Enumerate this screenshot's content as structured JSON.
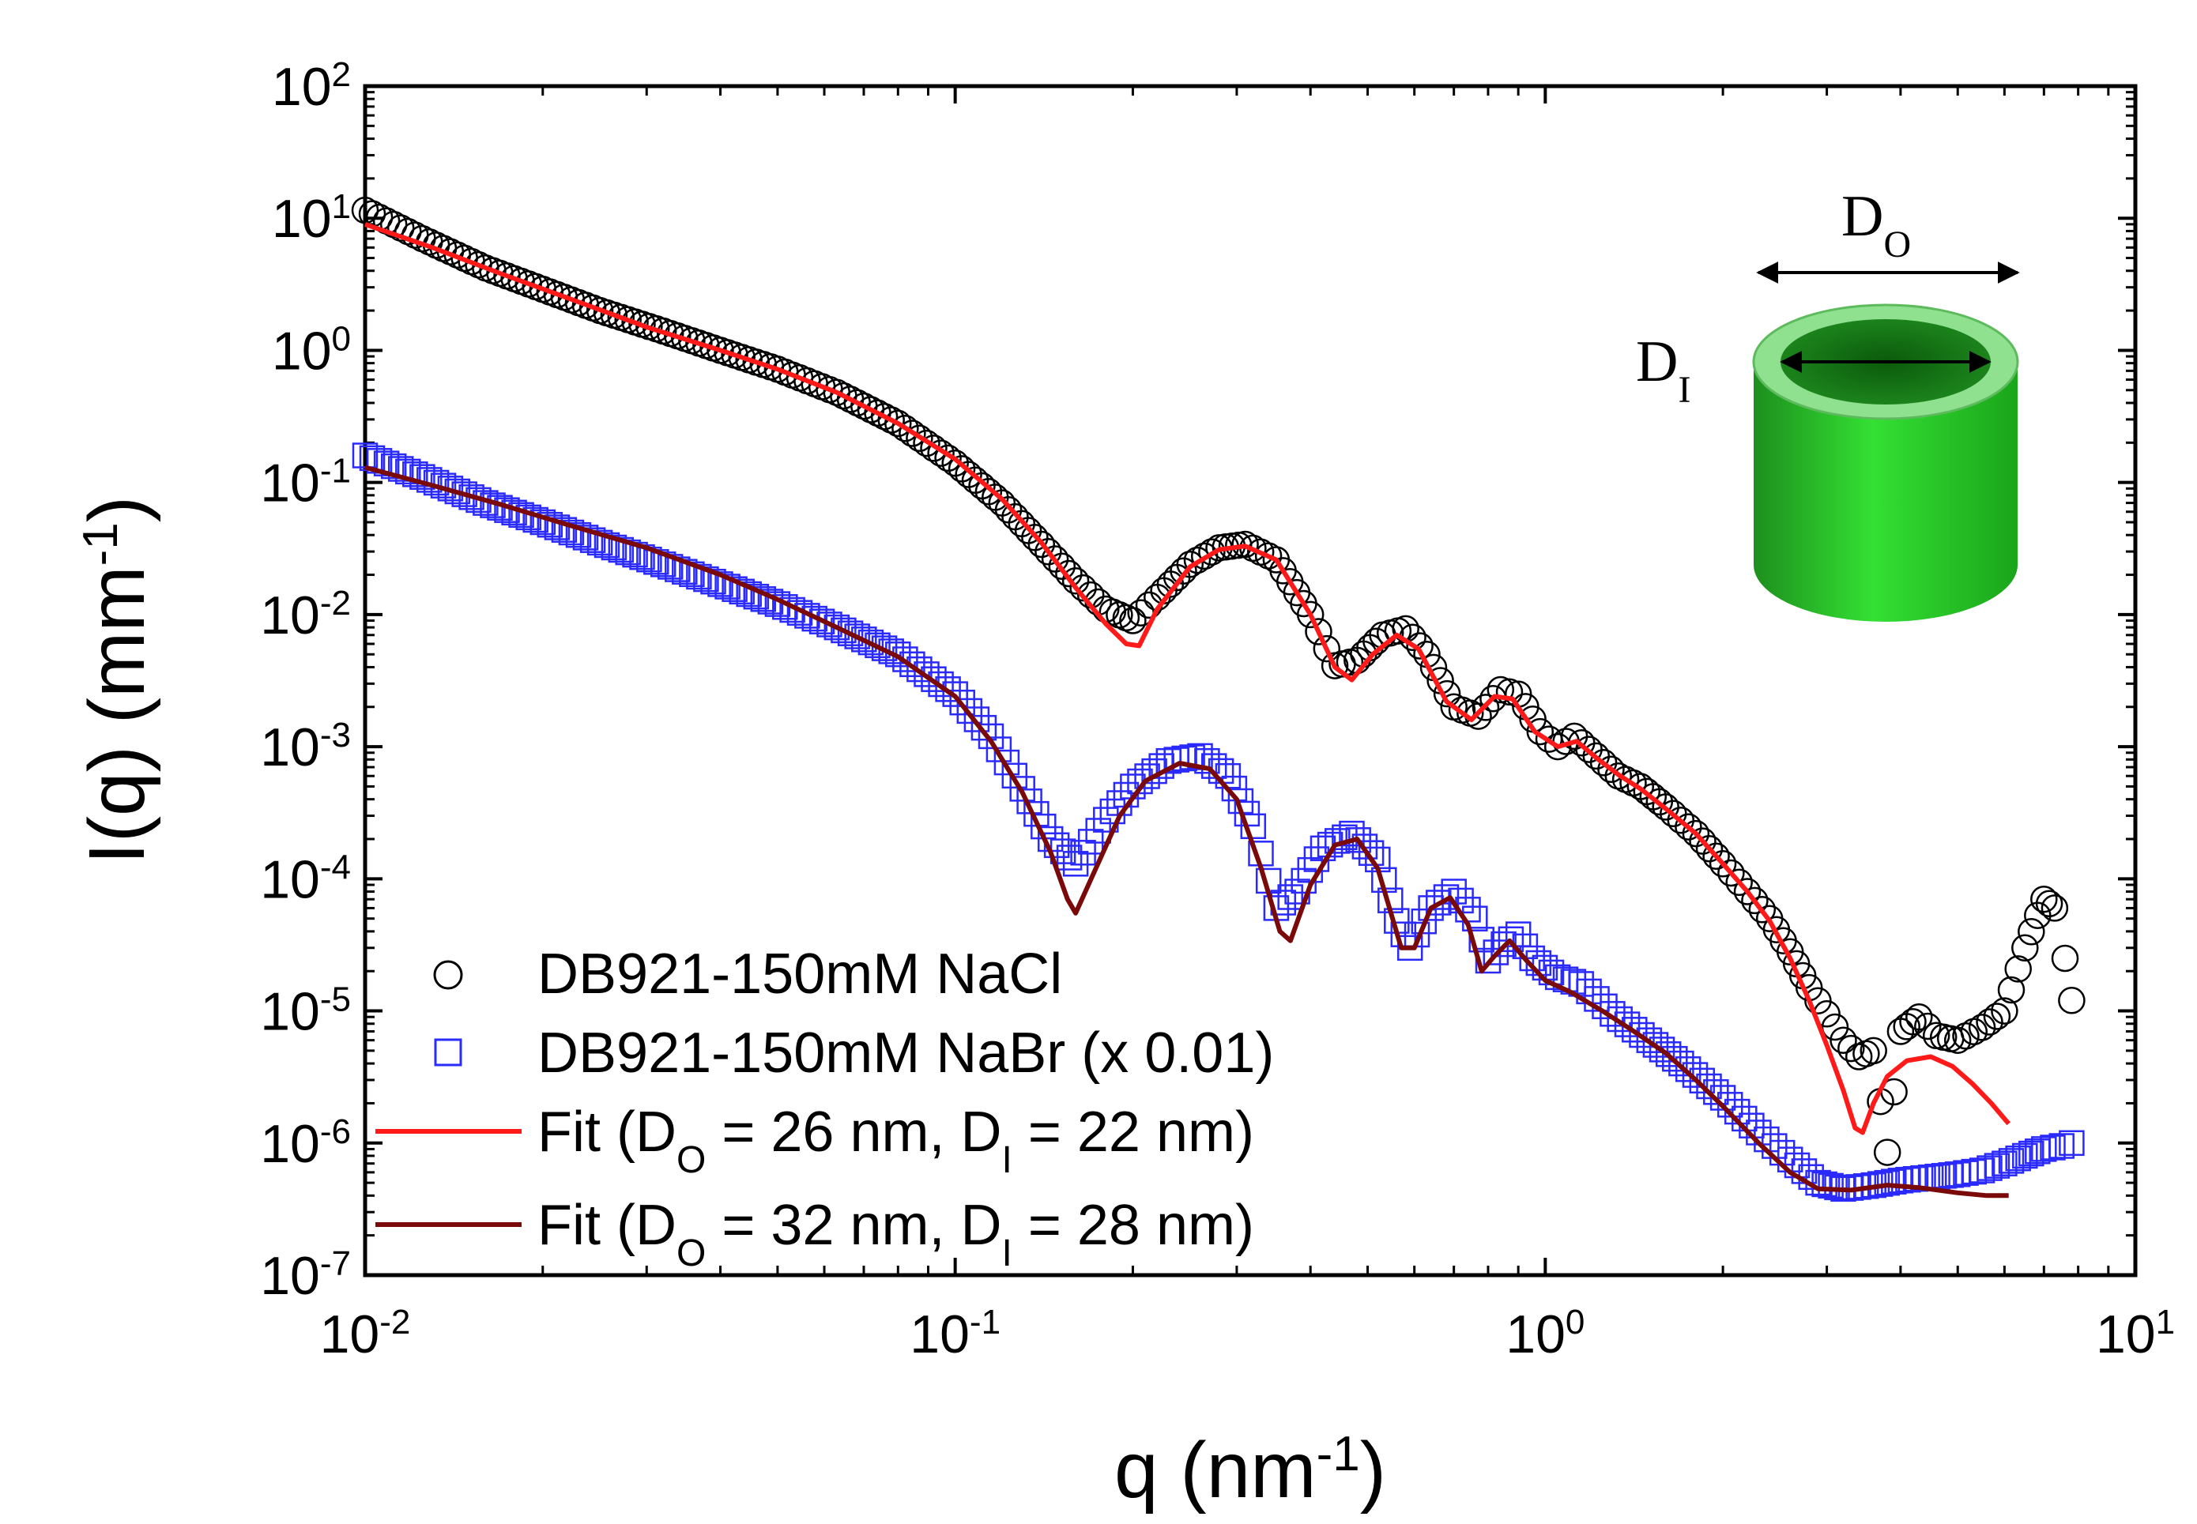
{
  "chart_data": {
    "type": "scatter",
    "title": "",
    "xlabel": "q (nm",
    "xlabel_sup": "-1",
    "xlabel_end": ")",
    "ylabel": "I(q) (mm",
    "ylabel_sup": "-1",
    "ylabel_end": ")",
    "xscale": "log",
    "yscale": "log",
    "xlim": [
      0.01,
      10
    ],
    "ylim": [
      1e-07,
      100
    ],
    "x_ticks": [
      {
        "base": "10",
        "exp": "-2",
        "value": 0.01
      },
      {
        "base": "10",
        "exp": "-1",
        "value": 0.1
      },
      {
        "base": "10",
        "exp": "0",
        "value": 1
      },
      {
        "base": "10",
        "exp": "1",
        "value": 10
      }
    ],
    "y_ticks": [
      {
        "base": "10",
        "exp": "2",
        "value": 100
      },
      {
        "base": "10",
        "exp": "1",
        "value": 10
      },
      {
        "base": "10",
        "exp": "0",
        "value": 1
      },
      {
        "base": "10",
        "exp": "-1",
        "value": 0.1
      },
      {
        "base": "10",
        "exp": "-2",
        "value": 0.01
      },
      {
        "base": "10",
        "exp": "-3",
        "value": 0.001
      },
      {
        "base": "10",
        "exp": "-4",
        "value": 0.0001
      },
      {
        "base": "10",
        "exp": "-5",
        "value": 1e-05
      },
      {
        "base": "10",
        "exp": "-6",
        "value": 1e-06
      },
      {
        "base": "10",
        "exp": "-7",
        "value": 1e-07
      }
    ],
    "legend_position": "bottom-left",
    "legend": [
      {
        "label": "DB921-150mM NaCl",
        "marker": "circle",
        "color": "#000000"
      },
      {
        "label": "DB921-150mM NaBr (x 0.01)",
        "marker": "square",
        "color": "#2a2aff"
      },
      {
        "label_pre": "Fit (D",
        "sub1": "O",
        "label_mid": " = 26 nm, D",
        "sub2": "I",
        "label_post": " = 22 nm)",
        "marker": "line",
        "color": "#ff1a1a"
      },
      {
        "label_pre": "Fit (D",
        "sub1": "O",
        "label_mid": " = 32 nm, D",
        "sub2": "I",
        "label_post": " = 28 nm)",
        "marker": "line",
        "color": "#7a0a0a"
      }
    ],
    "series": [
      {
        "name": "DB921-150mM NaCl",
        "marker": "circle",
        "color": "#000000",
        "points": [
          [
            0.01,
            11.5
          ],
          [
            0.0125,
            7.0
          ],
          [
            0.016,
            4.2
          ],
          [
            0.02,
            2.9
          ],
          [
            0.025,
            2.0
          ],
          [
            0.032,
            1.4
          ],
          [
            0.04,
            1.0
          ],
          [
            0.05,
            0.72
          ],
          [
            0.063,
            0.48
          ],
          [
            0.08,
            0.28
          ],
          [
            0.1,
            0.14
          ],
          [
            0.12,
            0.07
          ],
          [
            0.14,
            0.034
          ],
          [
            0.16,
            0.018
          ],
          [
            0.18,
            0.011
          ],
          [
            0.2,
            0.009
          ],
          [
            0.22,
            0.0135
          ],
          [
            0.25,
            0.024
          ],
          [
            0.28,
            0.032
          ],
          [
            0.31,
            0.034
          ],
          [
            0.35,
            0.026
          ],
          [
            0.4,
            0.01
          ],
          [
            0.44,
            0.0041
          ],
          [
            0.48,
            0.0045
          ],
          [
            0.53,
            0.007
          ],
          [
            0.58,
            0.0078
          ],
          [
            0.63,
            0.005
          ],
          [
            0.7,
            0.002
          ],
          [
            0.77,
            0.0017
          ],
          [
            0.84,
            0.0027
          ],
          [
            0.9,
            0.0025
          ],
          [
            0.98,
            0.0013
          ],
          [
            1.05,
            0.001
          ],
          [
            1.12,
            0.0012
          ],
          [
            1.22,
            0.00085
          ],
          [
            1.33,
            0.0006
          ],
          [
            1.45,
            0.0005
          ],
          [
            1.6,
            0.00035
          ],
          [
            1.8,
            0.00022
          ],
          [
            2.0,
            0.00013
          ],
          [
            2.2,
            8e-05
          ],
          [
            2.4,
            5e-05
          ],
          [
            2.6,
            2.8e-05
          ],
          [
            2.8,
            1.5e-05
          ],
          [
            3.0,
            9.5e-06
          ],
          [
            3.2,
            6e-06
          ],
          [
            3.4,
            4.5e-06
          ],
          [
            3.6,
            5e-06
          ],
          [
            3.8,
            8.5e-07
          ],
          [
            4.0,
            7e-06
          ],
          [
            4.3,
            9e-06
          ],
          [
            4.6,
            6.5e-06
          ],
          [
            5.0,
            6e-06
          ],
          [
            5.5,
            7.5e-06
          ],
          [
            6.0,
            1e-05
          ],
          [
            6.5,
            3e-05
          ],
          [
            7.0,
            7e-05
          ],
          [
            7.3,
            6e-05
          ],
          [
            7.6,
            2.5e-05
          ],
          [
            7.8,
            1.2e-05
          ]
        ]
      },
      {
        "name": "DB921-150mM NaBr (x 0.01)",
        "marker": "square",
        "color": "#2a2aff",
        "points": [
          [
            0.01,
            0.16
          ],
          [
            0.0125,
            0.11
          ],
          [
            0.016,
            0.07
          ],
          [
            0.02,
            0.05
          ],
          [
            0.025,
            0.035
          ],
          [
            0.032,
            0.024
          ],
          [
            0.04,
            0.017
          ],
          [
            0.05,
            0.012
          ],
          [
            0.063,
            0.008
          ],
          [
            0.08,
            0.005
          ],
          [
            0.1,
            0.0025
          ],
          [
            0.115,
            0.0012
          ],
          [
            0.13,
            0.00048
          ],
          [
            0.145,
            0.0002
          ],
          [
            0.16,
            0.00013
          ],
          [
            0.18,
            0.00028
          ],
          [
            0.2,
            0.0005
          ],
          [
            0.23,
            0.00078
          ],
          [
            0.26,
            0.00085
          ],
          [
            0.29,
            0.0006
          ],
          [
            0.32,
            0.00025
          ],
          [
            0.35,
            6e-05
          ],
          [
            0.38,
            8e-05
          ],
          [
            0.42,
            0.00017
          ],
          [
            0.47,
            0.00022
          ],
          [
            0.52,
            0.00014
          ],
          [
            0.56,
            4.8e-05
          ],
          [
            0.59,
            3e-05
          ],
          [
            0.64,
            6e-05
          ],
          [
            0.7,
            8e-05
          ],
          [
            0.76,
            5e-05
          ],
          [
            0.8,
            2.4e-05
          ],
          [
            0.85,
            3.2e-05
          ],
          [
            0.9,
            3.8e-05
          ],
          [
            0.95,
            2.5e-05
          ],
          [
            1.05,
            1.8e-05
          ],
          [
            1.15,
            1.6e-05
          ],
          [
            1.3,
            9.5e-06
          ],
          [
            1.5,
            6e-06
          ],
          [
            1.7,
            4e-06
          ],
          [
            2.0,
            2.2e-06
          ],
          [
            2.3,
            1.2e-06
          ],
          [
            2.6,
            7.5e-07
          ],
          [
            2.9,
            5e-07
          ],
          [
            3.2,
            4.5e-07
          ],
          [
            3.6,
            4.8e-07
          ],
          [
            4.0,
            5.2e-07
          ],
          [
            4.5,
            5.5e-07
          ],
          [
            5.0,
            5.8e-07
          ],
          [
            5.5,
            6.2e-07
          ],
          [
            6.0,
            7e-07
          ],
          [
            6.5,
            8e-07
          ],
          [
            7.0,
            9e-07
          ],
          [
            7.5,
            9.5e-07
          ],
          [
            7.8,
            1e-06
          ]
        ]
      },
      {
        "name": "Fit (DO = 26 nm, DI = 22 nm)",
        "marker": "line",
        "color": "#ff1a1a",
        "points": [
          [
            0.01,
            9.0
          ],
          [
            0.013,
            6.0
          ],
          [
            0.017,
            3.8
          ],
          [
            0.022,
            2.5
          ],
          [
            0.03,
            1.5
          ],
          [
            0.04,
            1.0
          ],
          [
            0.05,
            0.72
          ],
          [
            0.063,
            0.48
          ],
          [
            0.08,
            0.28
          ],
          [
            0.1,
            0.15
          ],
          [
            0.12,
            0.075
          ],
          [
            0.14,
            0.035
          ],
          [
            0.16,
            0.016
          ],
          [
            0.18,
            0.0085
          ],
          [
            0.195,
            0.006
          ],
          [
            0.205,
            0.0058
          ],
          [
            0.22,
            0.011
          ],
          [
            0.25,
            0.023
          ],
          [
            0.28,
            0.031
          ],
          [
            0.31,
            0.033
          ],
          [
            0.35,
            0.026
          ],
          [
            0.4,
            0.01
          ],
          [
            0.44,
            0.004
          ],
          [
            0.47,
            0.0032
          ],
          [
            0.51,
            0.005
          ],
          [
            0.56,
            0.007
          ],
          [
            0.61,
            0.0055
          ],
          [
            0.68,
            0.0022
          ],
          [
            0.75,
            0.0016
          ],
          [
            0.82,
            0.0024
          ],
          [
            0.88,
            0.0023
          ],
          [
            0.96,
            0.0013
          ],
          [
            1.05,
            0.001
          ],
          [
            1.13,
            0.0011
          ],
          [
            1.23,
            0.0008
          ],
          [
            1.34,
            0.0006
          ],
          [
            1.45,
            0.00048
          ],
          [
            1.6,
            0.00034
          ],
          [
            1.8,
            0.00022
          ],
          [
            2.0,
            0.00013
          ],
          [
            2.2,
            8e-05
          ],
          [
            2.4,
            4.8e-05
          ],
          [
            2.6,
            2.5e-05
          ],
          [
            2.8,
            1.2e-05
          ],
          [
            3.0,
            5.5e-06
          ],
          [
            3.2,
            2.5e-06
          ],
          [
            3.35,
            1.3e-06
          ],
          [
            3.45,
            1.2e-06
          ],
          [
            3.6,
            2e-06
          ],
          [
            3.8,
            3.2e-06
          ],
          [
            4.1,
            4.2e-06
          ],
          [
            4.5,
            4.5e-06
          ],
          [
            4.9,
            3.8e-06
          ],
          [
            5.3,
            2.8e-06
          ],
          [
            5.7,
            2e-06
          ],
          [
            6.1,
            1.4e-06
          ]
        ]
      },
      {
        "name": "Fit (DO = 32 nm, DI = 28 nm)",
        "marker": "line",
        "color": "#7a0a0a",
        "points": [
          [
            0.01,
            0.13
          ],
          [
            0.013,
            0.095
          ],
          [
            0.017,
            0.068
          ],
          [
            0.022,
            0.048
          ],
          [
            0.03,
            0.032
          ],
          [
            0.04,
            0.02
          ],
          [
            0.05,
            0.013
          ],
          [
            0.063,
            0.008
          ],
          [
            0.08,
            0.0048
          ],
          [
            0.1,
            0.0024
          ],
          [
            0.115,
            0.0011
          ],
          [
            0.13,
            0.00045
          ],
          [
            0.145,
            0.00016
          ],
          [
            0.155,
            7e-05
          ],
          [
            0.16,
            5.5e-05
          ],
          [
            0.17,
            0.0001
          ],
          [
            0.19,
            0.0003
          ],
          [
            0.21,
            0.00055
          ],
          [
            0.24,
            0.00075
          ],
          [
            0.27,
            0.00068
          ],
          [
            0.3,
            0.0004
          ],
          [
            0.33,
            0.00012
          ],
          [
            0.355,
            4e-05
          ],
          [
            0.37,
            3.4e-05
          ],
          [
            0.4,
            9e-05
          ],
          [
            0.44,
            0.00018
          ],
          [
            0.48,
            0.0002
          ],
          [
            0.52,
            0.00012
          ],
          [
            0.57,
            3e-05
          ],
          [
            0.6,
            3e-05
          ],
          [
            0.64,
            6e-05
          ],
          [
            0.69,
            7.2e-05
          ],
          [
            0.74,
            4.5e-05
          ],
          [
            0.78,
            2e-05
          ],
          [
            0.82,
            2.6e-05
          ],
          [
            0.87,
            3.4e-05
          ],
          [
            0.93,
            2.4e-05
          ],
          [
            1.0,
            1.7e-05
          ],
          [
            1.1,
            1.4e-05
          ],
          [
            1.25,
            1e-05
          ],
          [
            1.4,
            7.2e-06
          ],
          [
            1.6,
            4.8e-06
          ],
          [
            1.8,
            3e-06
          ],
          [
            2.0,
            1.9e-06
          ],
          [
            2.3,
            1e-06
          ],
          [
            2.6,
            6e-07
          ],
          [
            2.9,
            4.5e-07
          ],
          [
            3.3,
            4.4e-07
          ],
          [
            3.8,
            4.8e-07
          ],
          [
            4.3,
            4.6e-07
          ],
          [
            5.0,
            4.2e-07
          ],
          [
            5.6,
            4e-07
          ],
          [
            6.1,
            4e-07
          ]
        ]
      }
    ],
    "inset": {
      "outer_label": "D",
      "outer_sub": "O",
      "inner_label": "D",
      "inner_sub": "I",
      "cylinder_color": "#22cc22"
    }
  }
}
